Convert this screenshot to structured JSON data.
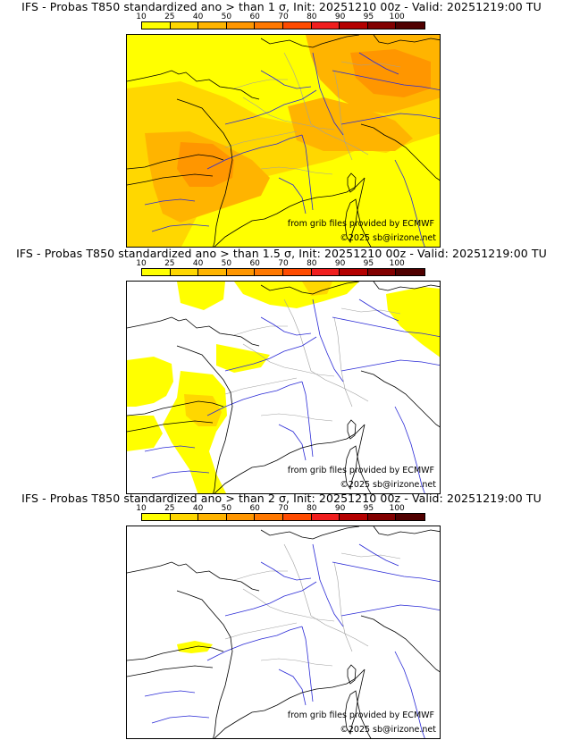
{
  "scale": {
    "labels": [
      "10",
      "25",
      "40",
      "50",
      "60",
      "70",
      "80",
      "90",
      "95",
      "100"
    ],
    "colors": [
      "#ffff00",
      "#ffd700",
      "#ffb400",
      "#ff9600",
      "#ff7800",
      "#ff4b00",
      "#f01e1e",
      "#b40000",
      "#820000",
      "#500000"
    ]
  },
  "credits": {
    "source": "from grib files provided by ECMWF",
    "copyright": "©2025 sb@irizone.net"
  },
  "panels": [
    {
      "title": "IFS - Probas T850  standardized ano > than 1 σ, Init: 20251210 00z - Valid: 20251219:00 TU",
      "threshold_sigma": 1,
      "coverage": "most of the domain above 10%, 25–50% bands over western France, north-east and central Europe"
    },
    {
      "title": "IFS - Probas T850  standardized ano > than 1.5 σ, Init: 20251210 00z - Valid: 20251219:00 TU",
      "threshold_sigma": 1.5,
      "coverage": "10–25% patches over the Bay of Biscay, south-west France, the North Sea coast and the north-east"
    },
    {
      "title": "IFS - Probas T850  standardized ano > than 2 σ, Init: 20251210 00z - Valid: 20251219:00 TU",
      "threshold_sigma": 2,
      "coverage": "only a small 10% patch over the southern Bay of Biscay"
    }
  ]
}
